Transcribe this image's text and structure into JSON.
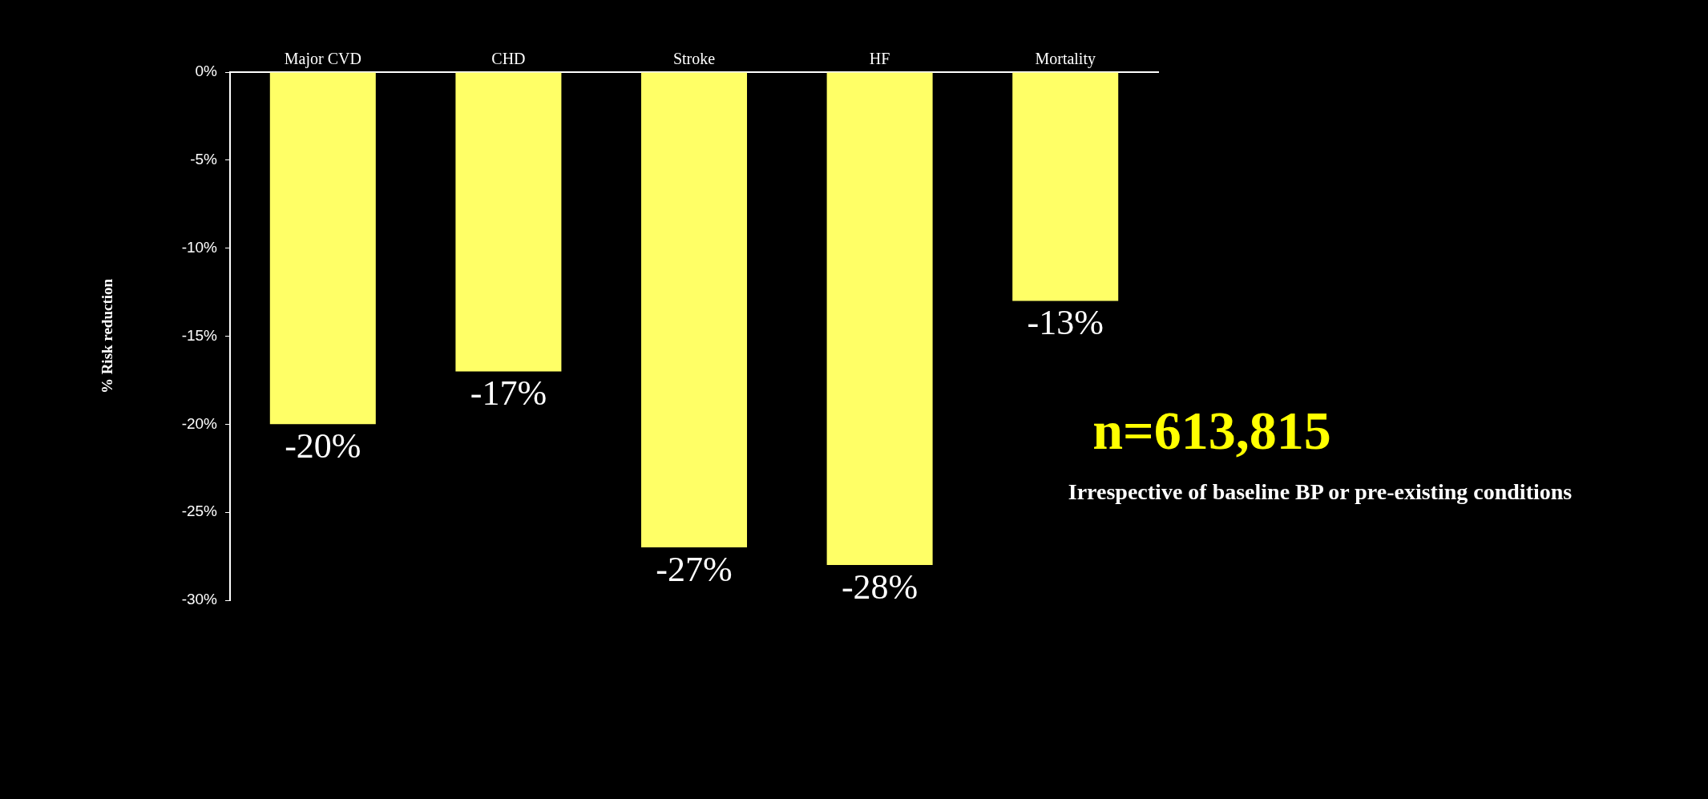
{
  "chart_data": {
    "type": "bar",
    "categories": [
      "Major CVD",
      "CHD",
      "Stroke",
      "HF",
      "Mortality"
    ],
    "values": [
      -20,
      -17,
      -27,
      -28,
      -13
    ],
    "color": "#ffff66",
    "value_labels": [
      "-20%",
      "-17%",
      "-27%",
      "-28%",
      "-13%"
    ],
    "ylabel": "% Risk reduction",
    "ylim": [
      -30,
      0
    ],
    "yticks": [
      {
        "value": 0,
        "label": "0%"
      },
      {
        "value": -5,
        "label": "-5%"
      },
      {
        "value": -10,
        "label": "-10%"
      },
      {
        "value": -15,
        "label": "-15%"
      },
      {
        "value": -20,
        "label": "-20%"
      },
      {
        "value": -25,
        "label": "-25%"
      },
      {
        "value": -30,
        "label": "-30%"
      }
    ],
    "grid": false,
    "legend": false,
    "annotations": [
      "n=613,815",
      "Irrespective of baseline BP or pre-existing conditions"
    ]
  }
}
